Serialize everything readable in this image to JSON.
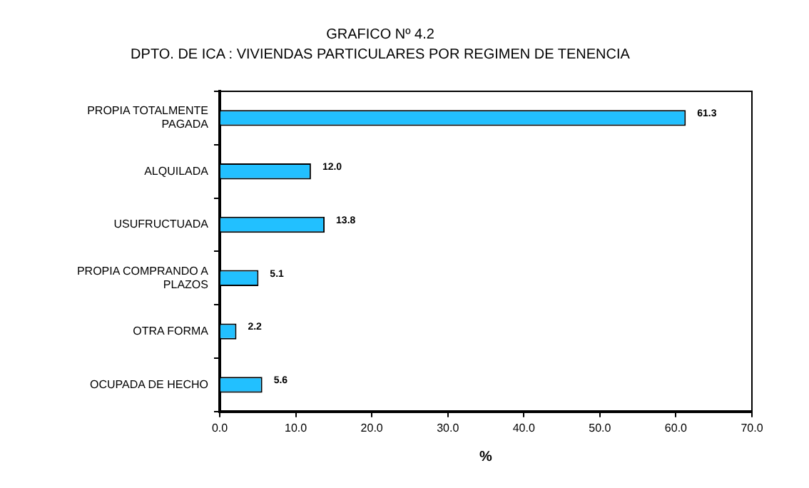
{
  "chart_data": {
    "type": "bar",
    "orientation": "horizontal",
    "title": "GRAFICO Nº 4.2",
    "subtitle": "DPTO. DE ICA : VIVIENDAS PARTICULARES POR REGIMEN DE TENENCIA",
    "xlabel": "%",
    "categories": [
      "PROPIA TOTALMENTE\nPAGADA",
      "ALQUILADA",
      "USUFRUCTUADA",
      "PROPIA COMPRANDO A\nPLAZOS",
      "OTRA FORMA",
      "OCUPADA DE HECHO"
    ],
    "values": [
      61.3,
      12.0,
      13.8,
      5.1,
      2.2,
      5.6
    ],
    "value_labels": [
      "61.3",
      "12.0",
      "13.8",
      "5.1",
      "2.2",
      "5.6"
    ],
    "color": "#22c0ff",
    "xlim": [
      0,
      70
    ],
    "xticks": [
      {
        "value": 0,
        "label": "0.0"
      },
      {
        "value": 10,
        "label": "10.0"
      },
      {
        "value": 20,
        "label": "20.0"
      },
      {
        "value": 30,
        "label": "30.0"
      },
      {
        "value": 40,
        "label": "40.0"
      },
      {
        "value": 50,
        "label": "50.0"
      },
      {
        "value": 60,
        "label": "60.0"
      },
      {
        "value": 70,
        "label": "70.0"
      }
    ],
    "grid": false,
    "legend": false
  }
}
